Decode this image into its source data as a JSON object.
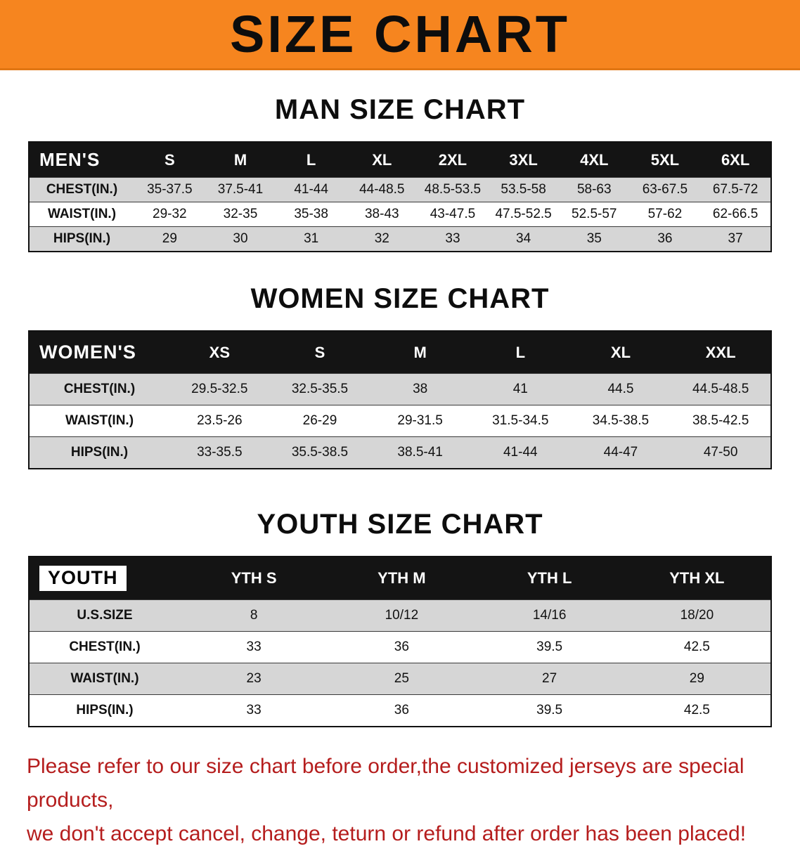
{
  "colors": {
    "banner_bg": "#f6851f",
    "table_header_bg": "#141414",
    "row_alt_bg": "#d6d6d6",
    "footer_text_color": "#b51d1d"
  },
  "banner": {
    "title": "SIZE CHART"
  },
  "sections": [
    {
      "heading": "MAN SIZE CHART",
      "table": {
        "corner": "MEN'S",
        "corner_highlight": false,
        "columns": [
          "S",
          "M",
          "L",
          "XL",
          "2XL",
          "3XL",
          "4XL",
          "5XL",
          "6XL"
        ],
        "rows": [
          {
            "label": "CHEST(IN.)",
            "values": [
              "35-37.5",
              "37.5-41",
              "41-44",
              "44-48.5",
              "48.5-53.5",
              "53.5-58",
              "58-63",
              "63-67.5",
              "67.5-72"
            ]
          },
          {
            "label": "WAIST(IN.)",
            "values": [
              "29-32",
              "32-35",
              "35-38",
              "38-43",
              "43-47.5",
              "47.5-52.5",
              "52.5-57",
              "57-62",
              "62-66.5"
            ]
          },
          {
            "label": "HIPS(IN.)",
            "values": [
              "29",
              "30",
              "31",
              "32",
              "33",
              "34",
              "35",
              "36",
              "37"
            ]
          }
        ]
      }
    },
    {
      "heading": "WOMEN SIZE CHART",
      "table": {
        "corner": "WOMEN'S",
        "corner_highlight": false,
        "columns": [
          "XS",
          "S",
          "M",
          "L",
          "XL",
          "XXL"
        ],
        "rows": [
          {
            "label": "CHEST(IN.)",
            "values": [
              "29.5-32.5",
              "32.5-35.5",
              "38",
              "41",
              "44.5",
              "44.5-48.5"
            ]
          },
          {
            "label": "WAIST(IN.)",
            "values": [
              "23.5-26",
              "26-29",
              "29-31.5",
              "31.5-34.5",
              "34.5-38.5",
              "38.5-42.5"
            ]
          },
          {
            "label": "HIPS(IN.)",
            "values": [
              "33-35.5",
              "35.5-38.5",
              "38.5-41",
              "41-44",
              "44-47",
              "47-50"
            ]
          }
        ]
      }
    },
    {
      "heading": "YOUTH SIZE CHART",
      "table": {
        "corner": "YOUTH",
        "corner_highlight": true,
        "columns": [
          "YTH S",
          "YTH M",
          "YTH L",
          "YTH XL"
        ],
        "rows": [
          {
            "label": "U.S.SIZE",
            "values": [
              "8",
              "10/12",
              "14/16",
              "18/20"
            ]
          },
          {
            "label": "CHEST(IN.)",
            "values": [
              "33",
              "36",
              "39.5",
              "42.5"
            ]
          },
          {
            "label": "WAIST(IN.)",
            "values": [
              "23",
              "25",
              "27",
              "29"
            ]
          },
          {
            "label": "HIPS(IN.)",
            "values": [
              "33",
              "36",
              "39.5",
              "42.5"
            ]
          }
        ]
      }
    }
  ],
  "footer": {
    "line1": "Please refer to our size chart before order,the customized jerseys are special products,",
    "line2": "we don't accept cancel, change, teturn or refund after order has been placed!"
  }
}
